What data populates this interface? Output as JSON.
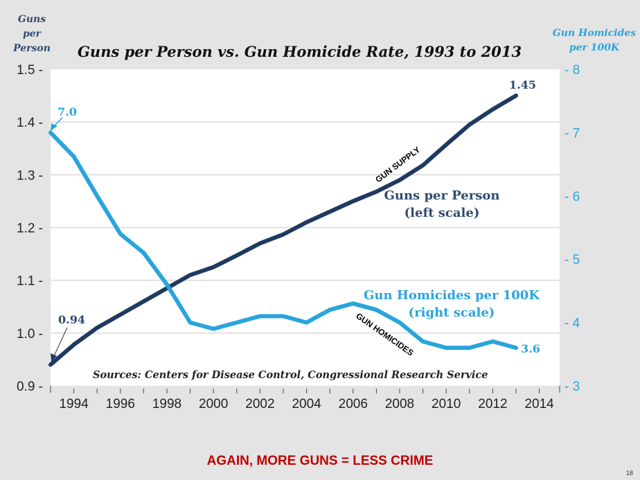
{
  "chart_data": {
    "type": "line",
    "title": "Guns per Person vs. Gun Homicide Rate, 1993 to 2013",
    "left_axis_label": [
      "Guns",
      "per",
      "Person"
    ],
    "right_axis_label": [
      "Gun Homicides",
      "per 100K"
    ],
    "x": [
      1993,
      1994,
      1995,
      1996,
      1997,
      1998,
      1999,
      2000,
      2001,
      2002,
      2003,
      2004,
      2005,
      2006,
      2007,
      2008,
      2009,
      2010,
      2011,
      2012,
      2013
    ],
    "xlim": [
      1993,
      2014
    ],
    "x_ticks": [
      "1994",
      "1996",
      "1998",
      "2000",
      "2002",
      "2004",
      "2006",
      "2008",
      "2010",
      "2012",
      "2014"
    ],
    "ylim_left": [
      0.9,
      1.5
    ],
    "y_ticks_left": [
      "1.5",
      "1.4",
      "1.3",
      "1.2",
      "1.1",
      "1.0",
      "0.9"
    ],
    "ylim_right": [
      3,
      8
    ],
    "y_ticks_right": [
      "8",
      "7",
      "6",
      "5",
      "4",
      "3"
    ],
    "grid": true,
    "series": [
      {
        "name": "Guns per Person (left scale)",
        "label_lines": [
          "Guns per Person",
          "(left scale)"
        ],
        "axis": "left",
        "color": "#1f3a60",
        "values": [
          0.94,
          0.978,
          1.01,
          1.035,
          1.06,
          1.085,
          1.11,
          1.125,
          1.147,
          1.17,
          1.187,
          1.21,
          1.23,
          1.25,
          1.268,
          1.29,
          1.318,
          1.357,
          1.395,
          1.424,
          1.45
        ]
      },
      {
        "name": "Gun Homicides per 100K (right scale)",
        "label_lines": [
          "Gun Homicides per 100K",
          "(right scale)"
        ],
        "axis": "right",
        "color": "#2aa4dc",
        "values": [
          7.0,
          6.62,
          6.0,
          5.4,
          5.1,
          4.6,
          4.0,
          3.9,
          4.0,
          4.1,
          4.1,
          4.0,
          4.2,
          4.3,
          4.2,
          4.0,
          3.7,
          3.6,
          3.6,
          3.7,
          3.6
        ]
      }
    ],
    "annotations": {
      "guns_start": "0.94",
      "guns_end": "1.45",
      "hom_start": "7.0",
      "hom_end": "3.6",
      "gun_supply": "GUN SUPPLY",
      "gun_homicides": "GUN HOMICIDES",
      "sources": "Sources: Centers for Disease Control, Congressional Research Service"
    }
  },
  "caption": "AGAIN, MORE GUNS = LESS CRIME",
  "page_number": "18"
}
